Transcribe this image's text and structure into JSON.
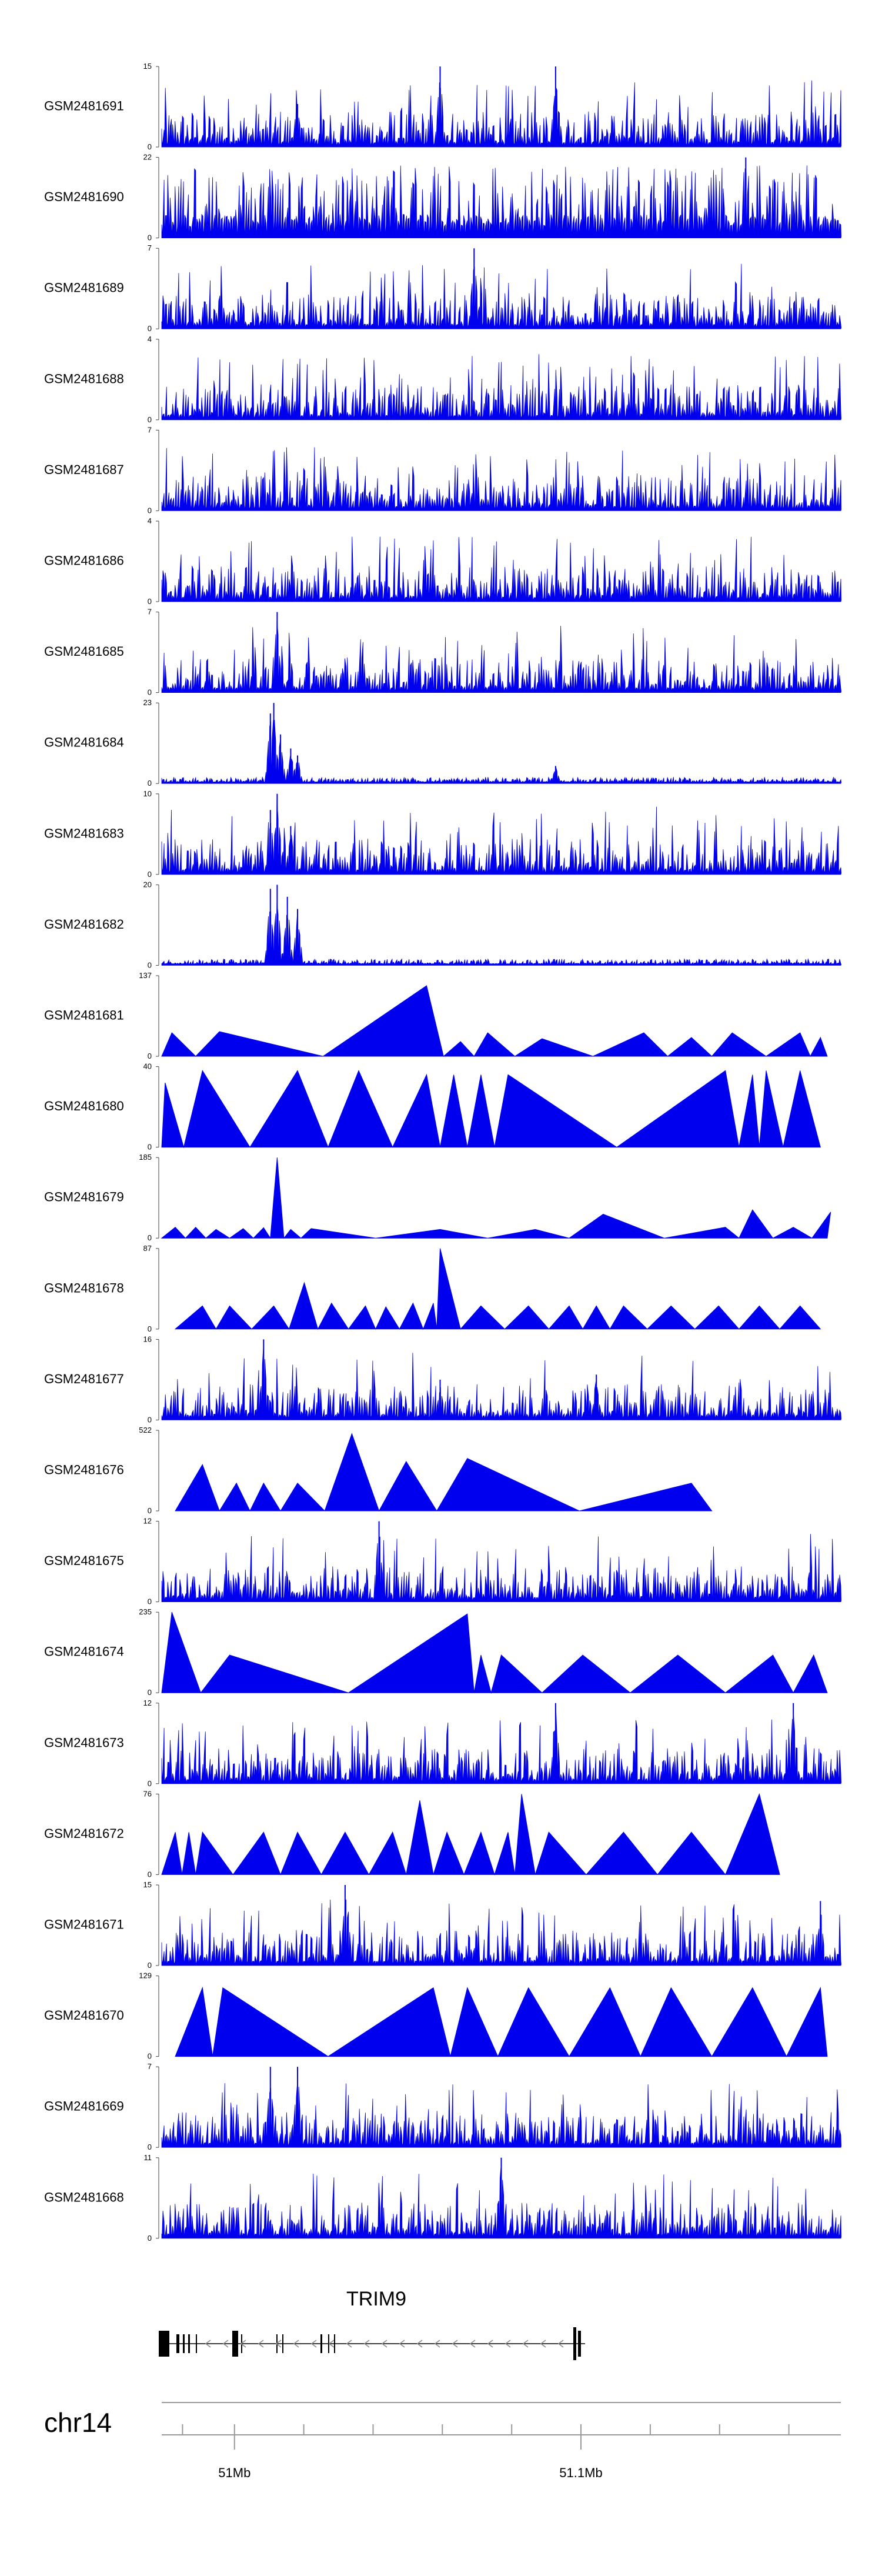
{
  "chart_data": {
    "type": "area",
    "title": "",
    "color": "#0000ee",
    "tracks": [
      {
        "name": "GSM2481691",
        "ymin": "0",
        "ymax": "15",
        "shape": "noise",
        "peaks": [
          [
            0.2,
            8
          ],
          [
            0.41,
            15
          ],
          [
            0.58,
            15
          ]
        ]
      },
      {
        "name": "GSM2481690",
        "ymin": "0",
        "ymax": "22",
        "shape": "dense-spikes",
        "peaks": [
          [
            0.86,
            22
          ]
        ]
      },
      {
        "name": "GSM2481689",
        "ymin": "0",
        "ymax": "7",
        "shape": "noise",
        "peaks": [
          [
            0.46,
            7
          ]
        ]
      },
      {
        "name": "GSM2481688",
        "ymin": "0",
        "ymax": "4",
        "shape": "noise",
        "peaks": []
      },
      {
        "name": "GSM2481687",
        "ymin": "0",
        "ymax": "7",
        "shape": "noise",
        "peaks": []
      },
      {
        "name": "GSM2481686",
        "ymin": "0",
        "ymax": "4",
        "shape": "noise",
        "peaks": []
      },
      {
        "name": "GSM2481685",
        "ymin": "0",
        "ymax": "7",
        "shape": "noise",
        "peaks": [
          [
            0.17,
            7
          ]
        ]
      },
      {
        "name": "GSM2481684",
        "ymin": "0",
        "ymax": "23",
        "shape": "low-noise",
        "peaks": [
          [
            0.16,
            20
          ],
          [
            0.165,
            23
          ],
          [
            0.175,
            14
          ],
          [
            0.19,
            10
          ],
          [
            0.2,
            8
          ],
          [
            0.58,
            5
          ]
        ]
      },
      {
        "name": "GSM2481683",
        "ymin": "0",
        "ymax": "10",
        "shape": "noise",
        "peaks": [
          [
            0.16,
            8
          ],
          [
            0.17,
            10
          ],
          [
            0.19,
            6
          ]
        ]
      },
      {
        "name": "GSM2481682",
        "ymin": "0",
        "ymax": "20",
        "shape": "low-noise",
        "peaks": [
          [
            0.16,
            19
          ],
          [
            0.17,
            20
          ],
          [
            0.185,
            17
          ],
          [
            0.2,
            14
          ]
        ]
      },
      {
        "name": "GSM2481681",
        "ymin": "0",
        "ymax": "137",
        "shape": "triangles",
        "peaks": [
          [
            0.015,
            40
          ],
          [
            0.085,
            42
          ],
          [
            0.39,
            120
          ],
          [
            0.44,
            25
          ],
          [
            0.48,
            40
          ],
          [
            0.56,
            30
          ],
          [
            0.71,
            40
          ],
          [
            0.78,
            32
          ],
          [
            0.84,
            40
          ],
          [
            0.94,
            40
          ],
          [
            0.97,
            32
          ]
        ]
      },
      {
        "name": "GSM2481680",
        "ymin": "0",
        "ymax": "40",
        "shape": "triangles",
        "peaks": [
          [
            0.005,
            32
          ],
          [
            0.06,
            38
          ],
          [
            0.2,
            38
          ],
          [
            0.29,
            38
          ],
          [
            0.39,
            36
          ],
          [
            0.43,
            36
          ],
          [
            0.47,
            36
          ],
          [
            0.51,
            36
          ],
          [
            0.83,
            38
          ],
          [
            0.87,
            36
          ],
          [
            0.89,
            38
          ],
          [
            0.94,
            38
          ]
        ]
      },
      {
        "name": "GSM2481679",
        "ymin": "0",
        "ymax": "185",
        "shape": "triangles",
        "peaks": [
          [
            0.02,
            25
          ],
          [
            0.05,
            25
          ],
          [
            0.08,
            20
          ],
          [
            0.12,
            22
          ],
          [
            0.15,
            24
          ],
          [
            0.17,
            185
          ],
          [
            0.19,
            20
          ],
          [
            0.22,
            22
          ],
          [
            0.41,
            20
          ],
          [
            0.55,
            20
          ],
          [
            0.65,
            55
          ],
          [
            0.83,
            25
          ],
          [
            0.87,
            65
          ],
          [
            0.93,
            25
          ],
          [
            0.985,
            60
          ]
        ]
      },
      {
        "name": "GSM2481678",
        "ymin": "0",
        "ymax": "87",
        "shape": "triangles",
        "peaks": [
          [
            0.06,
            25
          ],
          [
            0.1,
            25
          ],
          [
            0.165,
            25
          ],
          [
            0.21,
            50
          ],
          [
            0.25,
            28
          ],
          [
            0.3,
            25
          ],
          [
            0.33,
            24
          ],
          [
            0.37,
            28
          ],
          [
            0.4,
            28
          ],
          [
            0.41,
            87
          ],
          [
            0.47,
            25
          ],
          [
            0.54,
            25
          ],
          [
            0.6,
            25
          ],
          [
            0.64,
            25
          ],
          [
            0.68,
            25
          ],
          [
            0.75,
            25
          ],
          [
            0.82,
            25
          ],
          [
            0.88,
            25
          ],
          [
            0.94,
            25
          ]
        ]
      },
      {
        "name": "GSM2481677",
        "ymin": "0",
        "ymax": "16",
        "shape": "noise",
        "peaks": [
          [
            0.15,
            16
          ],
          [
            0.41,
            8
          ],
          [
            0.64,
            9
          ]
        ]
      },
      {
        "name": "GSM2481676",
        "ymin": "0",
        "ymax": "522",
        "shape": "triangles",
        "peaks": [
          [
            0.06,
            300
          ],
          [
            0.11,
            180
          ],
          [
            0.15,
            180
          ],
          [
            0.2,
            180
          ],
          [
            0.28,
            500
          ],
          [
            0.36,
            320
          ],
          [
            0.45,
            340
          ],
          [
            0.78,
            180
          ]
        ]
      },
      {
        "name": "GSM2481675",
        "ymin": "0",
        "ymax": "12",
        "shape": "noise",
        "peaks": [
          [
            0.32,
            12
          ]
        ]
      },
      {
        "name": "GSM2481674",
        "ymin": "0",
        "ymax": "235",
        "shape": "triangles",
        "peaks": [
          [
            0.015,
            235
          ],
          [
            0.1,
            110
          ],
          [
            0.45,
            230
          ],
          [
            0.47,
            110
          ],
          [
            0.5,
            110
          ],
          [
            0.62,
            110
          ],
          [
            0.76,
            110
          ],
          [
            0.9,
            110
          ],
          [
            0.96,
            110
          ]
        ]
      },
      {
        "name": "GSM2481673",
        "ymin": "0",
        "ymax": "12",
        "shape": "noise",
        "peaks": [
          [
            0.58,
            12
          ],
          [
            0.93,
            12
          ]
        ]
      },
      {
        "name": "GSM2481672",
        "ymin": "0",
        "ymax": "76",
        "shape": "triangles",
        "peaks": [
          [
            0.02,
            40
          ],
          [
            0.04,
            40
          ],
          [
            0.06,
            40
          ],
          [
            0.15,
            40
          ],
          [
            0.2,
            40
          ],
          [
            0.27,
            40
          ],
          [
            0.34,
            40
          ],
          [
            0.38,
            70
          ],
          [
            0.42,
            40
          ],
          [
            0.47,
            40
          ],
          [
            0.51,
            40
          ],
          [
            0.53,
            76
          ],
          [
            0.57,
            40
          ],
          [
            0.68,
            40
          ],
          [
            0.78,
            40
          ],
          [
            0.88,
            76
          ]
        ]
      },
      {
        "name": "GSM2481671",
        "ymin": "0",
        "ymax": "15",
        "shape": "noise",
        "peaks": [
          [
            0.27,
            15
          ],
          [
            0.97,
            12
          ]
        ]
      },
      {
        "name": "GSM2481670",
        "ymin": "0",
        "ymax": "129",
        "shape": "triangles",
        "peaks": [
          [
            0.06,
            110
          ],
          [
            0.09,
            110
          ],
          [
            0.4,
            110
          ],
          [
            0.45,
            110
          ],
          [
            0.54,
            110
          ],
          [
            0.66,
            110
          ],
          [
            0.75,
            110
          ],
          [
            0.87,
            110
          ],
          [
            0.97,
            110
          ]
        ]
      },
      {
        "name": "GSM2481669",
        "ymin": "0",
        "ymax": "7",
        "shape": "noise",
        "peaks": [
          [
            0.16,
            7
          ],
          [
            0.2,
            7
          ]
        ]
      },
      {
        "name": "GSM2481668",
        "ymin": "0",
        "ymax": "11",
        "shape": "noise",
        "peaks": [
          [
            0.5,
            11
          ]
        ]
      }
    ],
    "gene": {
      "name": "TRIM9",
      "strand": "-"
    },
    "chromosome": "chr14",
    "axis": {
      "range_mb": [
        50.979,
        51.175
      ],
      "ticks_mb": [
        50.985,
        51.0,
        51.02,
        51.04,
        51.06,
        51.08,
        51.1,
        51.12,
        51.14,
        51.16
      ],
      "labeled_ticks": [
        {
          "mb": 51.0,
          "label": "51Mb"
        },
        {
          "mb": 51.1,
          "label": "51.1Mb"
        }
      ]
    }
  }
}
